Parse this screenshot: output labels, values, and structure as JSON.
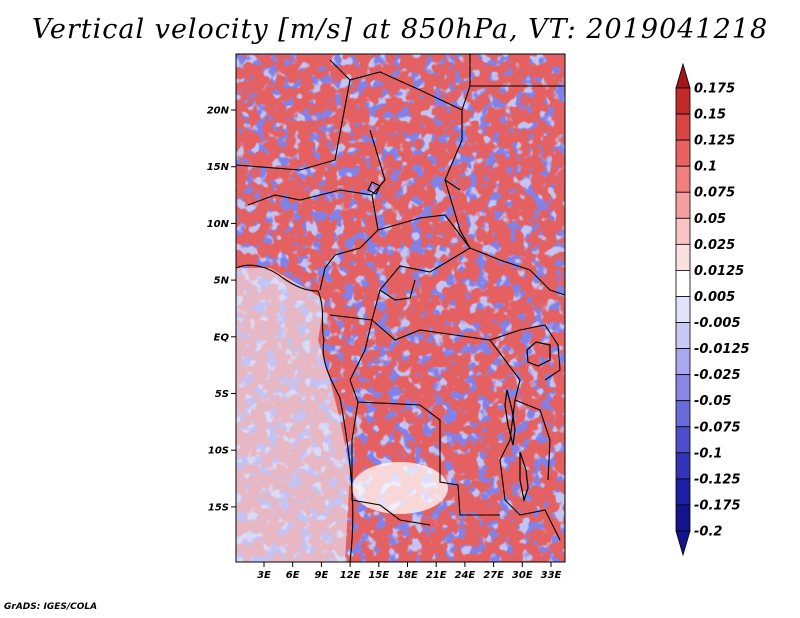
{
  "title": "Vertical velocity [m/s] at 850hPa, VT: 2019041218",
  "credit": "GrADS: IGES/COLA",
  "map": {
    "lat_labels": [
      "20N",
      "15N",
      "10N",
      "5N",
      "EQ",
      "5S",
      "10S",
      "15S"
    ],
    "lon_labels": [
      "3E",
      "6E",
      "9E",
      "12E",
      "15E",
      "18E",
      "21E",
      "24E",
      "27E",
      "30E",
      "33E"
    ]
  },
  "colorbar": {
    "levels": [
      "0.175",
      "0.15",
      "0.125",
      "0.1",
      "0.075",
      "0.05",
      "0.025",
      "0.0125",
      "0.005",
      "-0.005",
      "-0.0125",
      "-0.025",
      "-0.05",
      "-0.075",
      "-0.1",
      "-0.125",
      "-0.175",
      "-0.2"
    ],
    "colors": [
      "#a01818",
      "#c02a2a",
      "#d84545",
      "#e86262",
      "#f08080",
      "#f4a0a0",
      "#f8c4c4",
      "#fbe0e0",
      "#ffffff",
      "#e2e2fa",
      "#c8c8f5",
      "#a8a8ee",
      "#8888e4",
      "#6a6ad8",
      "#4e4ecc",
      "#3434b8",
      "#1e1ea4",
      "#14148c"
    ]
  }
}
